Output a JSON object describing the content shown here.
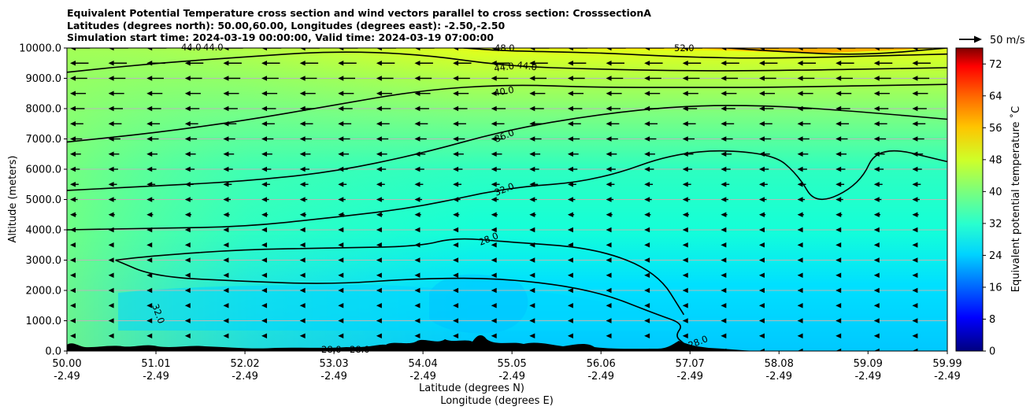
{
  "title_lines": [
    "Equivalent Potential Temperature cross section and wind vectors parallel to cross section: CrosssectionA",
    "Latitudes (degrees north): 50.00,60.00, Longitudes (degrees east): -2.50,-2.50",
    "Simulation start time: 2024-03-19 00:00:00, Valid time: 2024-03-19 07:00:00"
  ],
  "chart_data": {
    "type": "heatmap",
    "ylabel": "Altitude (meters)",
    "xlabel_line1": "Latitude (degrees N)",
    "xlabel_line2": "Longitude (degrees E)",
    "ylim": [
      0,
      10000
    ],
    "xlim": [
      50.0,
      59.99
    ],
    "y_ticks": [
      "0.0",
      "1000.0",
      "2000.0",
      "3000.0",
      "4000.0",
      "5000.0",
      "6000.0",
      "7000.0",
      "8000.0",
      "9000.0",
      "10000.0"
    ],
    "y_tick_values": [
      0,
      1000,
      2000,
      3000,
      4000,
      5000,
      6000,
      7000,
      8000,
      9000,
      10000
    ],
    "x_ticks": [
      {
        "lat": "50.00",
        "lon": "-2.49",
        "v": 50.0
      },
      {
        "lat": "51.01",
        "lon": "-2.49",
        "v": 51.01
      },
      {
        "lat": "52.02",
        "lon": "-2.49",
        "v": 52.02
      },
      {
        "lat": "53.03",
        "lon": "-2.49",
        "v": 53.03
      },
      {
        "lat": "54.04",
        "lon": "-2.49",
        "v": 54.04
      },
      {
        "lat": "55.05",
        "lon": "-2.49",
        "v": 55.05
      },
      {
        "lat": "56.06",
        "lon": "-2.49",
        "v": 56.06
      },
      {
        "lat": "57.07",
        "lon": "-2.49",
        "v": 57.07
      },
      {
        "lat": "58.08",
        "lon": "-2.49",
        "v": 58.08
      },
      {
        "lat": "59.09",
        "lon": "-2.49",
        "v": 59.09
      },
      {
        "lat": "59.99",
        "lon": "-2.49",
        "v": 59.99
      }
    ],
    "grid": "horizontal",
    "colorbar": {
      "label": "Equivalent potential temperature ˚C",
      "min": 0,
      "max": 76,
      "ticks": [
        "0",
        "8",
        "16",
        "24",
        "32",
        "40",
        "48",
        "56",
        "64",
        "72"
      ],
      "tick_values": [
        0,
        8,
        16,
        24,
        32,
        40,
        48,
        56,
        64,
        72
      ]
    },
    "quiver_key": "50 m/s",
    "contour_labels": [
      "28.0",
      "32.0",
      "36.0",
      "40.0",
      "44.0",
      "48.0",
      "52.0"
    ],
    "contours": [
      {
        "value": 28,
        "points": [
          [
            50.55,
            3000
          ],
          [
            51.0,
            2450
          ],
          [
            52.0,
            2300
          ],
          [
            53.0,
            2200
          ],
          [
            54.0,
            2400
          ],
          [
            55.0,
            2400
          ],
          [
            56.0,
            2000
          ],
          [
            56.7,
            1200
          ],
          [
            57.0,
            900
          ],
          [
            56.9,
            500
          ],
          [
            57.0,
            250
          ]
        ]
      },
      {
        "value": 28,
        "points": [
          [
            50.55,
            3000
          ],
          [
            51.0,
            3150
          ],
          [
            52.0,
            3350
          ],
          [
            53.0,
            3400
          ],
          [
            54.0,
            3450
          ],
          [
            54.4,
            3750
          ],
          [
            55.0,
            3600
          ],
          [
            56.0,
            3400
          ],
          [
            56.7,
            2600
          ],
          [
            57.0,
            1200
          ]
        ]
      },
      {
        "value": 32,
        "points": [
          [
            50.0,
            4000
          ],
          [
            51.0,
            4050
          ],
          [
            52.0,
            4100
          ],
          [
            53.0,
            4400
          ],
          [
            54.0,
            4750
          ],
          [
            55.0,
            5400
          ],
          [
            56.0,
            5600
          ],
          [
            57.0,
            6650
          ],
          [
            58.0,
            6550
          ],
          [
            58.3,
            5800
          ],
          [
            58.5,
            4800
          ],
          [
            59.0,
            5500
          ],
          [
            59.2,
            6800
          ],
          [
            59.99,
            6250
          ]
        ]
      },
      {
        "value": 36,
        "points": [
          [
            50.0,
            5300
          ],
          [
            51.0,
            5450
          ],
          [
            52.0,
            5600
          ],
          [
            53.0,
            5900
          ],
          [
            54.0,
            6500
          ],
          [
            55.0,
            7300
          ],
          [
            56.0,
            7800
          ],
          [
            57.0,
            8100
          ],
          [
            58.0,
            8100
          ],
          [
            59.0,
            7900
          ],
          [
            59.99,
            7650
          ]
        ]
      },
      {
        "value": 40,
        "points": [
          [
            50.0,
            6900
          ],
          [
            51.0,
            7200
          ],
          [
            52.0,
            7600
          ],
          [
            53.0,
            8100
          ],
          [
            54.0,
            8600
          ],
          [
            55.0,
            8800
          ],
          [
            56.0,
            8700
          ],
          [
            57.0,
            8700
          ],
          [
            58.0,
            8700
          ],
          [
            59.99,
            8800
          ]
        ]
      },
      {
        "value": 44,
        "points": [
          [
            50.0,
            9200
          ],
          [
            51.0,
            9500
          ],
          [
            52.0,
            9700
          ],
          [
            53.0,
            9900
          ],
          [
            54.0,
            9800
          ],
          [
            55.0,
            9400
          ],
          [
            56.0,
            9300
          ],
          [
            57.0,
            9250
          ],
          [
            58.0,
            9250
          ],
          [
            59.99,
            9350
          ]
        ]
      },
      {
        "value": 48,
        "points": [
          [
            54.5,
            10000
          ],
          [
            55.0,
            9900
          ],
          [
            56.0,
            9850
          ],
          [
            57.0,
            9700
          ],
          [
            58.0,
            9650
          ],
          [
            59.99,
            9800
          ]
        ]
      },
      {
        "value": 52,
        "points": [
          [
            57.5,
            10000
          ],
          [
            58.0,
            9900
          ],
          [
            59.0,
            9750
          ],
          [
            59.99,
            10000
          ]
        ]
      }
    ],
    "wind": {
      "direction": "southward (toward 50.00 N)",
      "speed_range_mps": [
        0,
        12
      ],
      "stronger_aloft": true
    }
  }
}
